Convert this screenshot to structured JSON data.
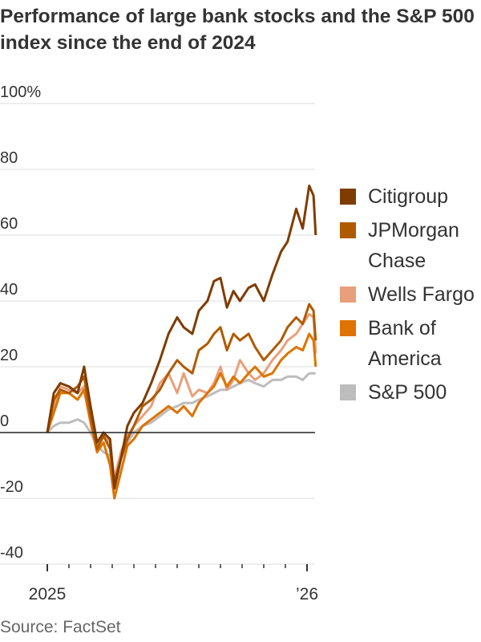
{
  "title": "Performance of large bank stocks and the S&P 500 index since the end of 2024",
  "source": "Source: FactSet",
  "chart_data": {
    "type": "line",
    "title": "Performance of large bank stocks and the S&P 500 index since the end of 2024",
    "xlabel": "",
    "ylabel": "",
    "ylim": [
      -40,
      100
    ],
    "yticks": [
      100,
      80,
      60,
      40,
      20,
      0,
      -20,
      -40
    ],
    "ytick_labels": [
      "100%",
      "80",
      "60",
      "40",
      "20",
      "0",
      "-20",
      "-40"
    ],
    "xlim_months": [
      0,
      12.4
    ],
    "xtick_labels": [
      {
        "month": 0,
        "label": "2025"
      },
      {
        "month": 12,
        "label": "’26"
      }
    ],
    "grid": true,
    "legend_position": "right",
    "x_months": [
      0,
      0.3,
      0.6,
      1,
      1.4,
      1.7,
      2,
      2.3,
      2.6,
      2.9,
      3.1,
      3.4,
      3.7,
      4,
      4.4,
      4.8,
      5.2,
      5.6,
      6,
      6.3,
      6.7,
      7,
      7.4,
      7.7,
      8,
      8.3,
      8.6,
      8.9,
      9.3,
      9.6,
      10,
      10.4,
      10.8,
      11.1,
      11.5,
      11.8,
      12.1,
      12.3,
      12.4
    ],
    "series": [
      {
        "name": "S&P 500",
        "color": "#bdbdbd",
        "values": [
          0,
          2,
          3,
          3,
          4,
          3,
          0,
          -4,
          -6,
          -7,
          -15,
          -8,
          -3,
          0,
          2,
          3,
          5,
          7,
          8,
          9,
          9,
          10,
          11,
          12,
          13,
          13,
          14,
          15,
          16,
          15,
          14,
          16,
          16,
          17,
          17,
          16,
          18,
          18,
          18
        ]
      },
      {
        "name": "Wells Fargo",
        "color": "#e8a07a",
        "values": [
          0,
          8,
          14,
          13,
          12,
          14,
          5,
          -4,
          -1,
          -3,
          -14,
          -6,
          -1,
          2,
          5,
          8,
          15,
          18,
          12,
          18,
          11,
          13,
          12,
          15,
          20,
          13,
          16,
          22,
          18,
          16,
          18,
          22,
          25,
          28,
          30,
          33,
          36,
          35,
          24
        ]
      },
      {
        "name": "Bank of America",
        "color": "#de7300",
        "values": [
          0,
          6,
          12,
          12,
          10,
          13,
          3,
          -6,
          -3,
          -10,
          -20,
          -12,
          -4,
          -2,
          2,
          4,
          6,
          8,
          6,
          8,
          5,
          9,
          12,
          14,
          18,
          14,
          17,
          15,
          18,
          20,
          17,
          18,
          22,
          24,
          26,
          25,
          30,
          28,
          20
        ]
      },
      {
        "name": "JPMorgan Chase",
        "color": "#b05a00",
        "values": [
          0,
          10,
          13,
          12,
          14,
          17,
          5,
          -5,
          -1,
          -5,
          -15,
          -8,
          -2,
          2,
          8,
          10,
          13,
          18,
          22,
          20,
          18,
          25,
          27,
          30,
          32,
          25,
          30,
          28,
          30,
          26,
          22,
          25,
          28,
          32,
          35,
          33,
          39,
          37,
          28
        ]
      },
      {
        "name": "Citigroup",
        "color": "#7f3c00",
        "values": [
          0,
          12,
          15,
          14,
          12,
          20,
          8,
          -3,
          0,
          -2,
          -17,
          -8,
          2,
          6,
          9,
          15,
          22,
          30,
          35,
          32,
          30,
          37,
          40,
          46,
          47,
          38,
          43,
          40,
          44,
          45,
          40,
          48,
          55,
          58,
          68,
          62,
          75,
          72,
          60
        ]
      }
    ],
    "legend": [
      "Citigroup",
      "JPMorgan Chase",
      "Wells Fargo",
      "Bank of America",
      "S&P 500"
    ]
  }
}
